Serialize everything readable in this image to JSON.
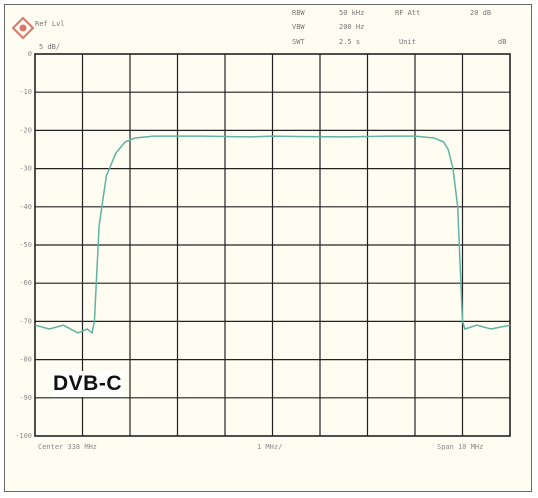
{
  "header": {
    "ref_level": "Ref Lvl",
    "scale": "5 dB/",
    "rbw_label": "RBW",
    "rbw_value": "50 kHz",
    "vbw_label": "VBW",
    "vbw_value": "200 Hz",
    "swt_label": "SWT",
    "swt_value": "2.5 s",
    "rf_att_label": "RF Att",
    "rf_att_value": "20 dB",
    "unit_label": "Unit",
    "unit_value": "dB"
  },
  "trace_label": "DVB-C",
  "footer": {
    "center": "Center  338 MHz",
    "span_div": "1 MHz/",
    "span": "Span 10 MHz"
  },
  "colors": {
    "trace": "#5fb3a3",
    "grid": "#222222",
    "plot_bg": "#fffdf2"
  },
  "chart_data": {
    "type": "line",
    "title": "",
    "xlabel": "",
    "ylabel": "",
    "y_tick_labels": [
      "0",
      "-10",
      "-20",
      "-30",
      "-40",
      "-50",
      "-60",
      "-70",
      "-80",
      "-90",
      "-100"
    ],
    "ylim": [
      -100,
      0
    ],
    "xlim": [
      333,
      343
    ],
    "grid": true,
    "series": [
      {
        "values_x": [
          333.0,
          333.3,
          333.6,
          333.9,
          334.1,
          334.2,
          334.25,
          334.35,
          334.5,
          334.7,
          334.9,
          335.1,
          335.5,
          336.5,
          337.5,
          338.0,
          338.5,
          339.5,
          340.5,
          341.0,
          341.4,
          341.6,
          341.7,
          341.8,
          341.9,
          341.95,
          342.0,
          342.05,
          342.3,
          342.6,
          343.0
        ],
        "values_y": [
          -71,
          -72,
          -71,
          -73,
          -72,
          -73,
          -70,
          -45,
          -32,
          -26,
          -23,
          -22,
          -21.5,
          -21.5,
          -21.7,
          -21.5,
          -21.6,
          -21.7,
          -21.5,
          -21.5,
          -22,
          -23,
          -25,
          -30,
          -40,
          -55,
          -70,
          -72,
          -71,
          -72,
          -71
        ]
      }
    ]
  }
}
